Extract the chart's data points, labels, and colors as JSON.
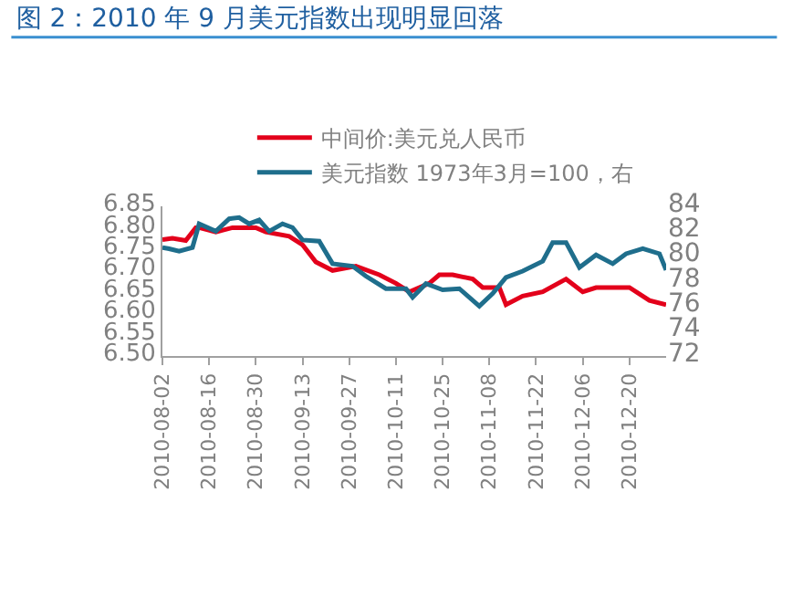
{
  "chart_data": {
    "type": "line",
    "title": "图 2：2010 年 9 月美元指数出现明显回落",
    "series": [
      {
        "name": "中间价:美元兑人民币",
        "color": "#e3001b",
        "x": [
          "2010-08-02",
          "2010-08-05",
          "2010-08-09",
          "2010-08-12",
          "2010-08-13",
          "2010-08-18",
          "2010-08-23",
          "2010-08-30",
          "2010-09-02",
          "2010-09-09",
          "2010-09-13",
          "2010-09-17",
          "2010-09-22",
          "2010-09-29",
          "2010-10-06",
          "2010-10-11",
          "2010-10-15",
          "2010-10-21",
          "2010-10-24",
          "2010-10-28",
          "2010-11-03",
          "2010-11-06",
          "2010-11-11",
          "2010-11-13",
          "2010-11-18",
          "2010-11-24",
          "2010-12-01",
          "2010-12-06",
          "2010-12-10",
          "2010-12-20",
          "2010-12-26",
          "2010-12-31"
        ],
        "values": [
          6.772,
          6.775,
          6.77,
          6.8,
          6.8,
          6.79,
          6.8,
          6.8,
          6.79,
          6.78,
          6.76,
          6.72,
          6.7,
          6.71,
          6.69,
          6.67,
          6.65,
          6.67,
          6.69,
          6.69,
          6.68,
          6.66,
          6.66,
          6.62,
          6.64,
          6.65,
          6.68,
          6.65,
          6.66,
          6.66,
          6.63,
          6.62
        ]
      },
      {
        "name": "美元指数 1973年3月=100，右",
        "color": "#1f6e8c",
        "axis": "y2",
        "x": [
          "2010-08-02",
          "2010-08-04",
          "2010-08-07",
          "2010-08-11",
          "2010-08-13",
          "2010-08-18",
          "2010-08-22",
          "2010-08-25",
          "2010-08-28",
          "2010-08-31",
          "2010-09-03",
          "2010-09-07",
          "2010-09-10",
          "2010-09-13",
          "2010-09-18",
          "2010-09-22",
          "2010-09-28",
          "2010-10-02",
          "2010-10-08",
          "2010-10-14",
          "2010-10-16",
          "2010-10-20",
          "2010-10-25",
          "2010-10-30",
          "2010-11-05",
          "2010-11-09",
          "2010-11-13",
          "2010-11-18",
          "2010-11-24",
          "2010-11-27",
          "2010-12-01",
          "2010-12-05",
          "2010-12-10",
          "2010-12-15",
          "2010-12-19",
          "2010-12-24",
          "2010-12-29",
          "2010-12-31"
        ],
        "values": [
          80.7,
          80.6,
          80.4,
          80.7,
          82.6,
          82.0,
          83.0,
          83.1,
          82.6,
          82.9,
          82.0,
          82.6,
          82.3,
          81.3,
          81.2,
          79.4,
          79.2,
          78.4,
          77.4,
          77.4,
          76.7,
          77.8,
          77.3,
          77.4,
          76.0,
          77.0,
          78.3,
          78.8,
          79.6,
          81.1,
          81.1,
          79.1,
          80.1,
          79.4,
          80.2,
          80.6,
          80.2,
          78.9
        ]
      }
    ],
    "xlim": [
      "2010-08-02",
      "2010-12-31"
    ],
    "xticks": [
      "2010-08-02",
      "2010-08-16",
      "2010-08-30",
      "2010-09-13",
      "2010-09-27",
      "2010-10-11",
      "2010-10-25",
      "2010-11-08",
      "2010-11-22",
      "2010-12-06",
      "2010-12-20"
    ],
    "ylim": [
      6.5,
      6.85
    ],
    "yticks": [
      {
        "value": 6.5,
        "label": "6.50"
      },
      6.55,
      {
        "value": 6.6,
        "label": "6.60"
      },
      6.65,
      {
        "value": 6.7,
        "label": "6.70"
      },
      6.75,
      {
        "value": 6.8,
        "label": "6.80"
      },
      6.85
    ],
    "y2lim": [
      72,
      84
    ],
    "y2ticks": [
      72,
      74,
      76,
      78,
      80,
      82,
      84
    ],
    "legend": "top",
    "grid": false,
    "line_style": "solid",
    "marker": "none"
  }
}
